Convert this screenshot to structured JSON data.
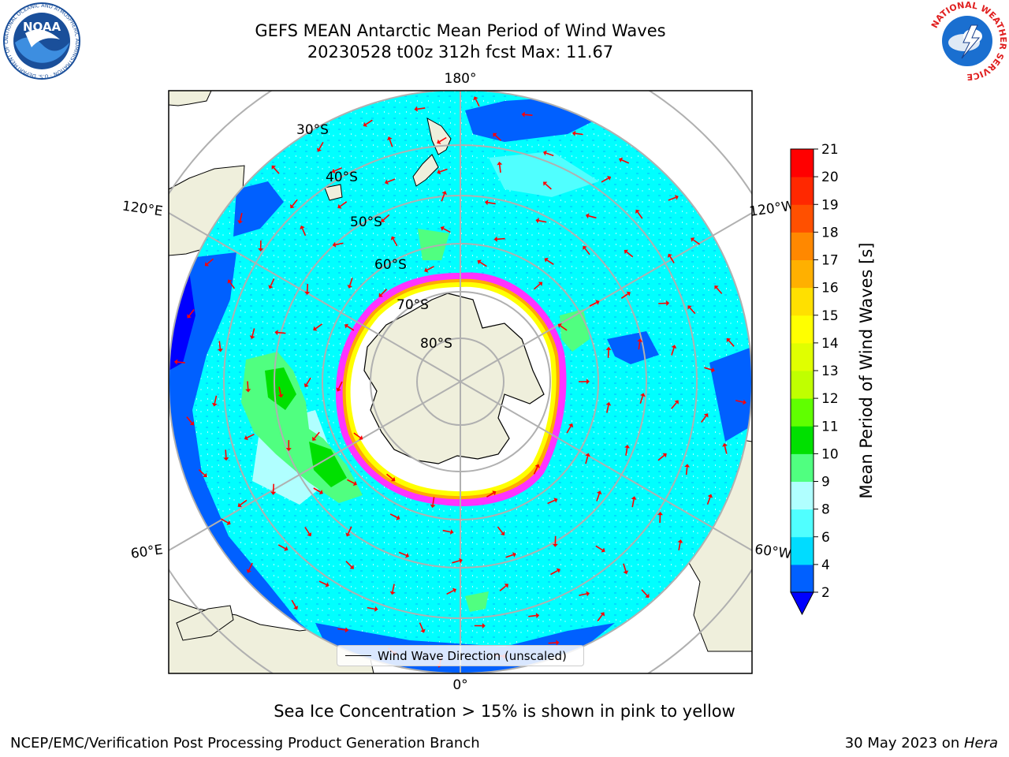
{
  "header": {
    "title_line1": "GEFS MEAN Antarctic Mean Period of Wind Waves",
    "title_line2": "20230528 t00z 312h fcst   Max: 11.67"
  },
  "logos": {
    "noaa": {
      "text": "NOAA",
      "ring_text": "NATIONAL OCEANIC AND ATMOSPHERIC ADMINISTRATION · U.S. DEPARTMENT OF COMMERCE"
    },
    "nws": {
      "ring_text": "NATIONAL WEATHER SERVICE"
    }
  },
  "map": {
    "projection": "south-polar-stereographic",
    "longitude_labels": [
      "180°",
      "120°E",
      "120°W",
      "60°E",
      "60°W",
      "0°"
    ],
    "latitude_labels": [
      "30°S",
      "40°S",
      "50°S",
      "60°S",
      "70°S",
      "80°S"
    ],
    "ocean_color": "#00ffff",
    "land_color": "#efefdc",
    "arrow_color": "#ff0000",
    "sea_ice_colors": [
      "#ff33ff",
      "#ffaa00",
      "#ffff00"
    ]
  },
  "colorbar": {
    "label": "Mean Period of Wind Waves [s]",
    "ticks": [
      "2",
      "4",
      "6",
      "8",
      "9",
      "10",
      "11",
      "12",
      "13",
      "14",
      "15",
      "16",
      "17",
      "18",
      "19",
      "20",
      "21"
    ],
    "colors": [
      "#0060ff",
      "#00dcff",
      "#50ffff",
      "#b0ffff",
      "#50ff80",
      "#00e000",
      "#60ff00",
      "#c0ff00",
      "#e0ff00",
      "#ffff00",
      "#ffe000",
      "#ffb000",
      "#ff8800",
      "#ff5000",
      "#ff2800",
      "#ff0000"
    ],
    "underflow_color": "#0000ff"
  },
  "legend": {
    "label": "Wind Wave Direction (unscaled)"
  },
  "footer": {
    "sea_ice_note": "Sea Ice Concentration > 15% is shown in pink to yellow",
    "credit": "NCEP/EMC/Verification Post Processing Product Generation Branch",
    "date_prefix": "30 May 2023 on ",
    "machine": "Hera"
  }
}
